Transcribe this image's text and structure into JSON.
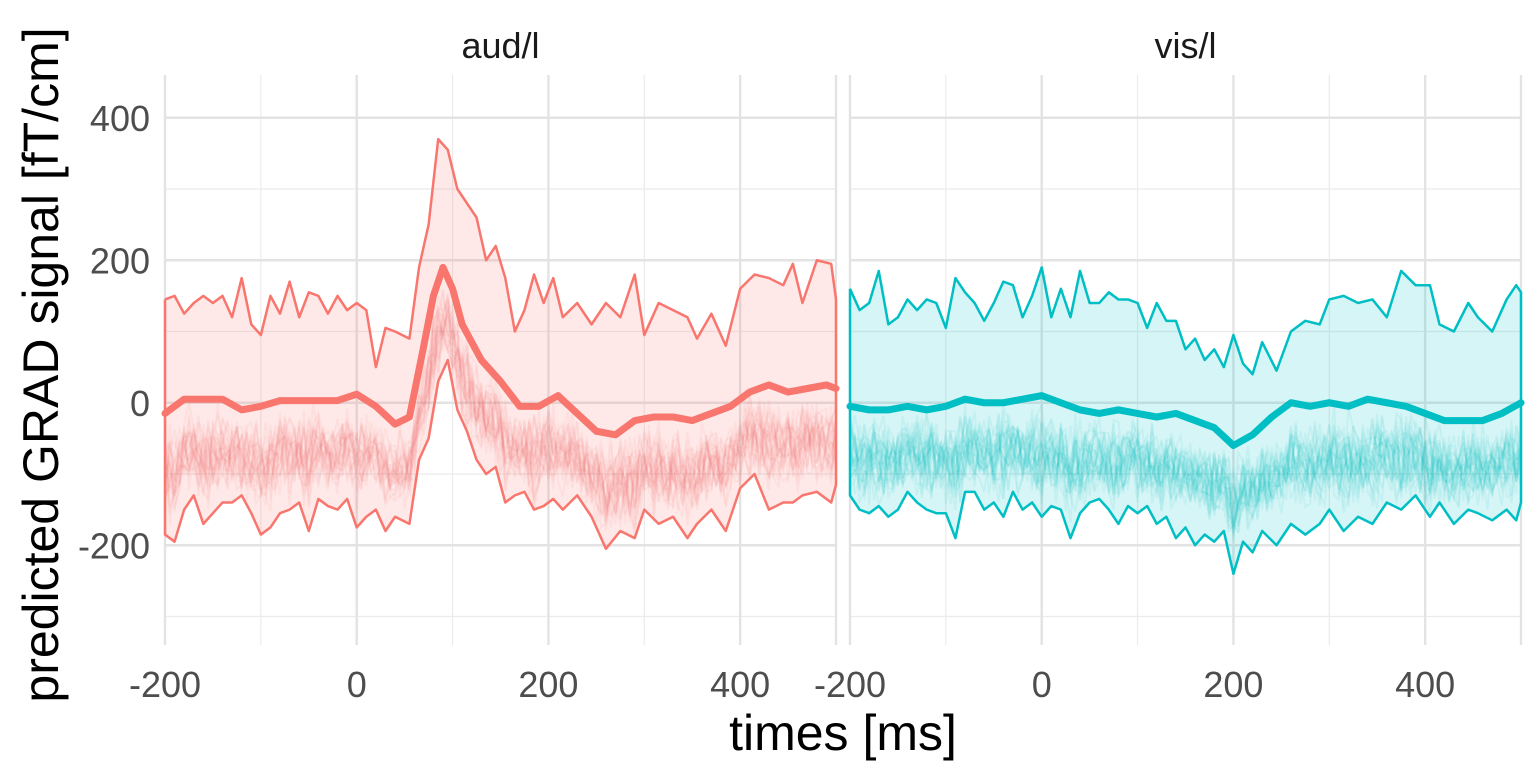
{
  "chart_data": {
    "type": "line",
    "title": "",
    "xlabel": "times [ms]",
    "ylabel": "predicted GRAD signal [fT/cm]",
    "xlim": [
      -200,
      500
    ],
    "ylim": [
      -340,
      460
    ],
    "x_ticks": [
      -200,
      0,
      200,
      400
    ],
    "y_ticks": [
      -200,
      0,
      200,
      400
    ],
    "grid": true,
    "legend": "none",
    "panels": [
      {
        "name": "aud/l",
        "color": "#F8766D",
        "mean": [
          [
            -200,
            -15
          ],
          [
            -180,
            5
          ],
          [
            -160,
            5
          ],
          [
            -140,
            5
          ],
          [
            -120,
            -10
          ],
          [
            -100,
            -5
          ],
          [
            -80,
            3
          ],
          [
            -60,
            3
          ],
          [
            -40,
            3
          ],
          [
            -20,
            3
          ],
          [
            0,
            12
          ],
          [
            20,
            -5
          ],
          [
            40,
            -30
          ],
          [
            55,
            -20
          ],
          [
            70,
            80
          ],
          [
            80,
            150
          ],
          [
            90,
            190
          ],
          [
            100,
            160
          ],
          [
            110,
            110
          ],
          [
            130,
            60
          ],
          [
            150,
            30
          ],
          [
            170,
            -5
          ],
          [
            190,
            -5
          ],
          [
            210,
            10
          ],
          [
            230,
            -15
          ],
          [
            250,
            -40
          ],
          [
            270,
            -45
          ],
          [
            290,
            -25
          ],
          [
            310,
            -20
          ],
          [
            330,
            -20
          ],
          [
            350,
            -25
          ],
          [
            370,
            -15
          ],
          [
            390,
            -5
          ],
          [
            410,
            15
          ],
          [
            430,
            25
          ],
          [
            450,
            15
          ],
          [
            470,
            20
          ],
          [
            490,
            25
          ],
          [
            500,
            20
          ]
        ],
        "upper": [
          [
            -200,
            145
          ],
          [
            -190,
            150
          ],
          [
            -180,
            125
          ],
          [
            -170,
            140
          ],
          [
            -160,
            150
          ],
          [
            -150,
            140
          ],
          [
            -140,
            150
          ],
          [
            -130,
            120
          ],
          [
            -120,
            175
          ],
          [
            -110,
            110
          ],
          [
            -100,
            95
          ],
          [
            -90,
            150
          ],
          [
            -80,
            125
          ],
          [
            -70,
            170
          ],
          [
            -60,
            120
          ],
          [
            -50,
            155
          ],
          [
            -40,
            150
          ],
          [
            -30,
            125
          ],
          [
            -20,
            150
          ],
          [
            -10,
            130
          ],
          [
            0,
            140
          ],
          [
            10,
            130
          ],
          [
            20,
            50
          ],
          [
            30,
            105
          ],
          [
            40,
            100
          ],
          [
            55,
            90
          ],
          [
            65,
            190
          ],
          [
            75,
            250
          ],
          [
            85,
            370
          ],
          [
            95,
            355
          ],
          [
            105,
            300
          ],
          [
            115,
            280
          ],
          [
            125,
            260
          ],
          [
            135,
            200
          ],
          [
            145,
            220
          ],
          [
            155,
            175
          ],
          [
            165,
            100
          ],
          [
            175,
            130
          ],
          [
            185,
            180
          ],
          [
            195,
            140
          ],
          [
            205,
            175
          ],
          [
            215,
            120
          ],
          [
            230,
            140
          ],
          [
            245,
            110
          ],
          [
            260,
            140
          ],
          [
            275,
            120
          ],
          [
            290,
            180
          ],
          [
            300,
            95
          ],
          [
            315,
            140
          ],
          [
            330,
            130
          ],
          [
            345,
            120
          ],
          [
            355,
            90
          ],
          [
            370,
            125
          ],
          [
            385,
            80
          ],
          [
            400,
            160
          ],
          [
            415,
            180
          ],
          [
            430,
            175
          ],
          [
            445,
            165
          ],
          [
            455,
            195
          ],
          [
            465,
            140
          ],
          [
            480,
            200
          ],
          [
            495,
            195
          ],
          [
            500,
            145
          ]
        ],
        "lower": [
          [
            -200,
            -185
          ],
          [
            -190,
            -195
          ],
          [
            -180,
            -150
          ],
          [
            -170,
            -130
          ],
          [
            -160,
            -170
          ],
          [
            -150,
            -155
          ],
          [
            -140,
            -140
          ],
          [
            -130,
            -140
          ],
          [
            -120,
            -130
          ],
          [
            -110,
            -155
          ],
          [
            -100,
            -185
          ],
          [
            -90,
            -175
          ],
          [
            -80,
            -155
          ],
          [
            -70,
            -150
          ],
          [
            -60,
            -140
          ],
          [
            -50,
            -180
          ],
          [
            -40,
            -135
          ],
          [
            -30,
            -145
          ],
          [
            -20,
            -150
          ],
          [
            -10,
            -135
          ],
          [
            0,
            -175
          ],
          [
            10,
            -160
          ],
          [
            20,
            -150
          ],
          [
            30,
            -180
          ],
          [
            40,
            -160
          ],
          [
            55,
            -170
          ],
          [
            65,
            -80
          ],
          [
            75,
            -50
          ],
          [
            85,
            30
          ],
          [
            95,
            60
          ],
          [
            105,
            -10
          ],
          [
            115,
            -40
          ],
          [
            125,
            -80
          ],
          [
            135,
            -100
          ],
          [
            145,
            -90
          ],
          [
            155,
            -140
          ],
          [
            165,
            -130
          ],
          [
            175,
            -125
          ],
          [
            185,
            -150
          ],
          [
            195,
            -145
          ],
          [
            205,
            -135
          ],
          [
            215,
            -150
          ],
          [
            230,
            -130
          ],
          [
            245,
            -160
          ],
          [
            260,
            -205
          ],
          [
            275,
            -180
          ],
          [
            290,
            -190
          ],
          [
            300,
            -150
          ],
          [
            315,
            -170
          ],
          [
            330,
            -160
          ],
          [
            345,
            -190
          ],
          [
            355,
            -170
          ],
          [
            370,
            -150
          ],
          [
            385,
            -180
          ],
          [
            400,
            -120
          ],
          [
            415,
            -100
          ],
          [
            430,
            -150
          ],
          [
            445,
            -140
          ],
          [
            455,
            -140
          ],
          [
            465,
            -130
          ],
          [
            480,
            -125
          ],
          [
            495,
            -140
          ],
          [
            500,
            -115
          ]
        ]
      },
      {
        "name": "vis/l",
        "color": "#00BFC4",
        "mean": [
          [
            -200,
            -5
          ],
          [
            -180,
            -10
          ],
          [
            -160,
            -10
          ],
          [
            -140,
            -5
          ],
          [
            -120,
            -10
          ],
          [
            -100,
            -5
          ],
          [
            -80,
            5
          ],
          [
            -60,
            0
          ],
          [
            -40,
            0
          ],
          [
            -20,
            5
          ],
          [
            0,
            10
          ],
          [
            20,
            0
          ],
          [
            40,
            -10
          ],
          [
            60,
            -15
          ],
          [
            80,
            -10
          ],
          [
            100,
            -15
          ],
          [
            120,
            -20
          ],
          [
            140,
            -15
          ],
          [
            160,
            -25
          ],
          [
            180,
            -35
          ],
          [
            200,
            -60
          ],
          [
            220,
            -45
          ],
          [
            240,
            -20
          ],
          [
            260,
            0
          ],
          [
            280,
            -5
          ],
          [
            300,
            0
          ],
          [
            320,
            -5
          ],
          [
            340,
            5
          ],
          [
            360,
            0
          ],
          [
            380,
            -5
          ],
          [
            400,
            -15
          ],
          [
            420,
            -25
          ],
          [
            440,
            -25
          ],
          [
            460,
            -25
          ],
          [
            480,
            -15
          ],
          [
            500,
            0
          ]
        ],
        "upper": [
          [
            -200,
            160
          ],
          [
            -190,
            130
          ],
          [
            -180,
            140
          ],
          [
            -170,
            185
          ],
          [
            -160,
            110
          ],
          [
            -150,
            120
          ],
          [
            -140,
            145
          ],
          [
            -130,
            130
          ],
          [
            -120,
            145
          ],
          [
            -110,
            140
          ],
          [
            -100,
            105
          ],
          [
            -90,
            175
          ],
          [
            -80,
            155
          ],
          [
            -70,
            140
          ],
          [
            -60,
            115
          ],
          [
            -50,
            140
          ],
          [
            -40,
            170
          ],
          [
            -30,
            165
          ],
          [
            -20,
            120
          ],
          [
            -10,
            150
          ],
          [
            0,
            190
          ],
          [
            10,
            120
          ],
          [
            20,
            160
          ],
          [
            30,
            120
          ],
          [
            40,
            185
          ],
          [
            50,
            140
          ],
          [
            60,
            140
          ],
          [
            70,
            155
          ],
          [
            80,
            145
          ],
          [
            90,
            145
          ],
          [
            100,
            140
          ],
          [
            110,
            105
          ],
          [
            120,
            140
          ],
          [
            130,
            115
          ],
          [
            140,
            115
          ],
          [
            150,
            75
          ],
          [
            160,
            90
          ],
          [
            170,
            60
          ],
          [
            180,
            75
          ],
          [
            190,
            50
          ],
          [
            200,
            95
          ],
          [
            210,
            55
          ],
          [
            220,
            40
          ],
          [
            230,
            85
          ],
          [
            245,
            45
          ],
          [
            260,
            100
          ],
          [
            275,
            115
          ],
          [
            290,
            110
          ],
          [
            300,
            145
          ],
          [
            315,
            150
          ],
          [
            330,
            140
          ],
          [
            345,
            145
          ],
          [
            360,
            120
          ],
          [
            375,
            185
          ],
          [
            390,
            165
          ],
          [
            405,
            165
          ],
          [
            415,
            110
          ],
          [
            430,
            100
          ],
          [
            445,
            140
          ],
          [
            455,
            120
          ],
          [
            470,
            100
          ],
          [
            485,
            145
          ],
          [
            495,
            165
          ],
          [
            500,
            155
          ]
        ],
        "lower": [
          [
            -200,
            -130
          ],
          [
            -190,
            -150
          ],
          [
            -180,
            -155
          ],
          [
            -170,
            -145
          ],
          [
            -160,
            -160
          ],
          [
            -150,
            -150
          ],
          [
            -140,
            -125
          ],
          [
            -130,
            -140
          ],
          [
            -120,
            -150
          ],
          [
            -110,
            -155
          ],
          [
            -100,
            -155
          ],
          [
            -90,
            -190
          ],
          [
            -80,
            -125
          ],
          [
            -70,
            -125
          ],
          [
            -60,
            -150
          ],
          [
            -50,
            -140
          ],
          [
            -40,
            -160
          ],
          [
            -30,
            -125
          ],
          [
            -20,
            -150
          ],
          [
            -10,
            -140
          ],
          [
            0,
            -160
          ],
          [
            10,
            -145
          ],
          [
            20,
            -150
          ],
          [
            30,
            -190
          ],
          [
            40,
            -155
          ],
          [
            50,
            -140
          ],
          [
            60,
            -135
          ],
          [
            70,
            -150
          ],
          [
            80,
            -170
          ],
          [
            90,
            -145
          ],
          [
            100,
            -155
          ],
          [
            110,
            -145
          ],
          [
            120,
            -170
          ],
          [
            130,
            -160
          ],
          [
            140,
            -190
          ],
          [
            150,
            -175
          ],
          [
            160,
            -200
          ],
          [
            170,
            -185
          ],
          [
            180,
            -195
          ],
          [
            190,
            -180
          ],
          [
            200,
            -240
          ],
          [
            210,
            -195
          ],
          [
            220,
            -210
          ],
          [
            230,
            -180
          ],
          [
            245,
            -200
          ],
          [
            260,
            -170
          ],
          [
            275,
            -185
          ],
          [
            290,
            -170
          ],
          [
            300,
            -150
          ],
          [
            315,
            -180
          ],
          [
            330,
            -160
          ],
          [
            345,
            -170
          ],
          [
            360,
            -140
          ],
          [
            375,
            -150
          ],
          [
            390,
            -130
          ],
          [
            405,
            -160
          ],
          [
            415,
            -140
          ],
          [
            430,
            -170
          ],
          [
            445,
            -150
          ],
          [
            455,
            -155
          ],
          [
            470,
            -165
          ],
          [
            485,
            -150
          ],
          [
            495,
            -165
          ],
          [
            500,
            -140
          ]
        ]
      }
    ]
  }
}
